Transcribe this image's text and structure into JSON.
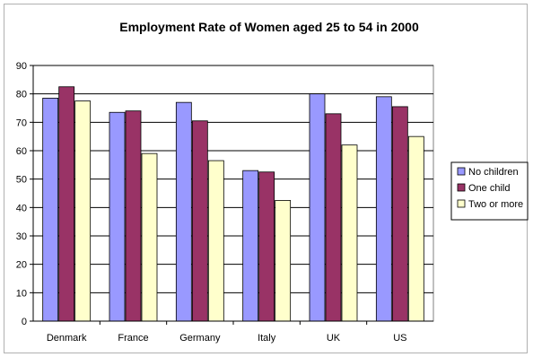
{
  "chart_data": {
    "type": "bar",
    "title": "Employment Rate of Women aged 25 to 54 in 2000",
    "xlabel": "",
    "ylabel": "",
    "ylim": [
      0,
      90
    ],
    "yticks": [
      0,
      10,
      20,
      30,
      40,
      50,
      60,
      70,
      80,
      90
    ],
    "grid": true,
    "legend_position": "right",
    "categories": [
      "Denmark",
      "France",
      "Germany",
      "Italy",
      "UK",
      "US"
    ],
    "series": [
      {
        "name": "No children",
        "color": "#9999ff",
        "values": [
          78.5,
          73.5,
          77.0,
          53.0,
          80.0,
          79.0
        ]
      },
      {
        "name": "One child",
        "color": "#993366",
        "values": [
          82.5,
          74.0,
          70.5,
          52.5,
          73.0,
          75.5
        ]
      },
      {
        "name": "Two or more",
        "color": "#ffffcc",
        "values": [
          77.5,
          59.0,
          56.5,
          42.5,
          62.0,
          65.0
        ]
      }
    ]
  }
}
